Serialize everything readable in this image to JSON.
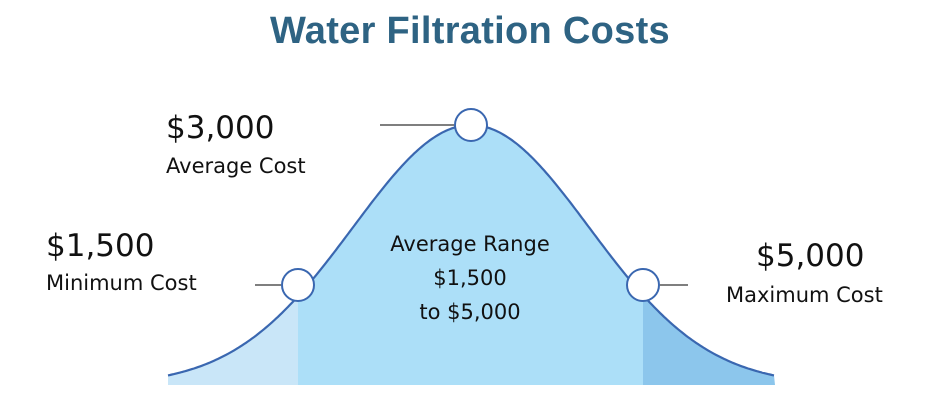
{
  "title": "Water Filtration Costs",
  "colors": {
    "title": "#2e6383",
    "curve_stroke": "#3a67b0",
    "fill_low": "#c9e6f8",
    "fill_mid": "#acdff8",
    "fill_high": "#8cc6ec",
    "marker_fill": "#ffffff",
    "leader_line": "#555555"
  },
  "annotations": {
    "average": {
      "value": "$3,000",
      "label": "Average Cost"
    },
    "minimum": {
      "value": "$1,500",
      "label": "Minimum Cost"
    },
    "maximum": {
      "value": "$5,000",
      "label": "Maximum Cost"
    }
  },
  "range_text": {
    "line1": "Average Range",
    "line2": "$1,500",
    "line3": "to $5,000"
  },
  "chart_data": {
    "type": "area",
    "title": "Water Filtration Costs",
    "xlabel": "",
    "ylabel": "",
    "grid": false,
    "points": [
      {
        "x": 1500,
        "label": "Minimum Cost"
      },
      {
        "x": 3000,
        "label": "Average Cost"
      },
      {
        "x": 5000,
        "label": "Maximum Cost"
      }
    ],
    "regions": [
      {
        "name": "below-minimum",
        "color": "#c9e6f8"
      },
      {
        "name": "average-range",
        "from": 1500,
        "to": 5000,
        "color": "#acdff8"
      },
      {
        "name": "above-maximum",
        "color": "#8cc6ec"
      }
    ]
  }
}
